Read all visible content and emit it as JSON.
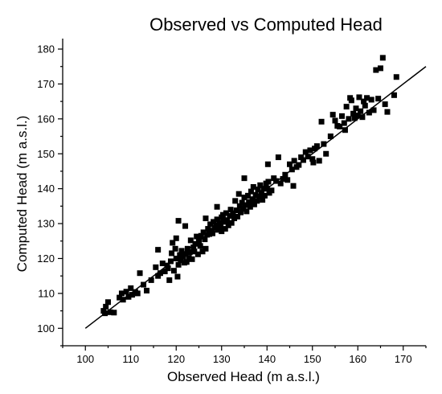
{
  "chart_data": {
    "type": "scatter",
    "title": "Observed vs Computed Head",
    "xlabel": "Observed Head (m a.s.l.)",
    "ylabel": "Computed Head (m a.s.l.)",
    "xlim": [
      95,
      175
    ],
    "ylim": [
      95,
      183
    ],
    "xticks": [
      100,
      110,
      120,
      130,
      140,
      150,
      160,
      170
    ],
    "yticks": [
      100,
      110,
      120,
      130,
      140,
      150,
      160,
      170,
      180
    ],
    "grid": false,
    "marker": "square",
    "marker_color": "#000000",
    "fit_line": {
      "x": [
        100,
        175
      ],
      "y": [
        100,
        175
      ],
      "color": "#000000"
    },
    "points": [
      [
        104.0,
        105.0
      ],
      [
        104.3,
        104.3
      ],
      [
        104.5,
        106.2
      ],
      [
        105.0,
        107.5
      ],
      [
        105.5,
        104.6
      ],
      [
        106.3,
        104.5
      ],
      [
        108.0,
        110.0
      ],
      [
        108.3,
        108.2
      ],
      [
        109.0,
        110.5
      ],
      [
        109.5,
        109.0
      ],
      [
        110.0,
        111.5
      ],
      [
        110.3,
        109.6
      ],
      [
        111.0,
        110.4
      ],
      [
        111.5,
        110.0
      ],
      [
        112.0,
        115.8
      ],
      [
        113.5,
        110.8
      ],
      [
        114.5,
        113.8
      ],
      [
        115.5,
        117.5
      ],
      [
        116.0,
        115.0
      ],
      [
        116.5,
        115.8
      ],
      [
        117.0,
        118.6
      ],
      [
        117.5,
        116.3
      ],
      [
        118.0,
        118.0
      ],
      [
        118.2,
        117.2
      ],
      [
        118.5,
        113.8
      ],
      [
        118.8,
        119.2
      ],
      [
        119.0,
        121.5
      ],
      [
        119.2,
        124.5
      ],
      [
        119.5,
        116.5
      ],
      [
        119.8,
        122.8
      ],
      [
        120.0,
        120.0
      ],
      [
        120.0,
        125.8
      ],
      [
        120.3,
        114.8
      ],
      [
        120.5,
        118.2
      ],
      [
        120.8,
        121.0
      ],
      [
        121.0,
        119.5
      ],
      [
        121.2,
        122.2
      ],
      [
        121.5,
        120.5
      ],
      [
        121.8,
        118.8
      ],
      [
        122.0,
        121.3
      ],
      [
        122.0,
        129.3
      ],
      [
        122.3,
        119.0
      ],
      [
        122.5,
        122.8
      ],
      [
        122.8,
        120.2
      ],
      [
        123.0,
        121.8
      ],
      [
        123.2,
        125.2
      ],
      [
        123.5,
        119.8
      ],
      [
        123.8,
        123.2
      ],
      [
        124.0,
        122.0
      ],
      [
        124.2,
        124.2
      ],
      [
        124.5,
        126.3
      ],
      [
        124.8,
        121.2
      ],
      [
        125.0,
        125.0
      ],
      [
        125.3,
        123.6
      ],
      [
        125.5,
        126.5
      ],
      [
        125.8,
        122.0
      ],
      [
        126.0,
        127.5
      ],
      [
        126.3,
        125.5
      ],
      [
        126.5,
        122.8
      ],
      [
        126.8,
        126.8
      ],
      [
        127.0,
        128.5
      ],
      [
        127.3,
        127.0
      ],
      [
        127.5,
        129.8
      ],
      [
        127.8,
        128.0
      ],
      [
        128.0,
        127.2
      ],
      [
        128.2,
        130.5
      ],
      [
        128.5,
        128.8
      ],
      [
        128.8,
        129.5
      ],
      [
        129.0,
        131.2
      ],
      [
        129.2,
        128.2
      ],
      [
        129.5,
        130.2
      ],
      [
        129.8,
        129.0
      ],
      [
        130.0,
        127.8
      ],
      [
        130.0,
        131.8
      ],
      [
        130.3,
        132.5
      ],
      [
        130.5,
        130.5
      ],
      [
        130.8,
        128.5
      ],
      [
        131.0,
        133.0
      ],
      [
        131.2,
        131.0
      ],
      [
        131.5,
        129.5
      ],
      [
        131.8,
        132.2
      ],
      [
        132.0,
        134.0
      ],
      [
        132.2,
        130.2
      ],
      [
        132.5,
        133.0
      ],
      [
        132.8,
        131.5
      ],
      [
        133.0,
        136.5
      ],
      [
        133.3,
        133.8
      ],
      [
        133.5,
        132.0
      ],
      [
        133.8,
        138.5
      ],
      [
        134.0,
        135.0
      ],
      [
        134.2,
        133.2
      ],
      [
        134.5,
        136.0
      ],
      [
        134.8,
        134.2
      ],
      [
        135.0,
        137.5
      ],
      [
        135.2,
        135.3
      ],
      [
        135.5,
        133.5
      ],
      [
        135.8,
        138.0
      ],
      [
        136.0,
        136.2
      ],
      [
        136.3,
        134.8
      ],
      [
        136.5,
        139.2
      ],
      [
        136.8,
        137.0
      ],
      [
        137.0,
        140.5
      ],
      [
        137.2,
        135.5
      ],
      [
        137.5,
        138.2
      ],
      [
        137.8,
        136.5
      ],
      [
        138.0,
        139.8
      ],
      [
        138.3,
        137.8
      ],
      [
        138.5,
        141.0
      ],
      [
        138.8,
        138.8
      ],
      [
        139.0,
        136.8
      ],
      [
        139.3,
        140.0
      ],
      [
        139.5,
        138.0
      ],
      [
        139.8,
        141.5
      ],
      [
        140.0,
        140.0
      ],
      [
        140.3,
        142.0
      ],
      [
        140.5,
        138.8
      ],
      [
        141.0,
        139.5
      ],
      [
        141.5,
        143.0
      ],
      [
        142.0,
        142.2
      ],
      [
        142.5,
        149.0
      ],
      [
        143.0,
        141.5
      ],
      [
        143.5,
        142.8
      ],
      [
        144.0,
        144.0
      ],
      [
        144.5,
        142.5
      ],
      [
        145.0,
        147.0
      ],
      [
        145.5,
        145.5
      ],
      [
        146.0,
        148.0
      ],
      [
        146.5,
        146.2
      ],
      [
        147.0,
        146.8
      ],
      [
        147.5,
        149.0
      ],
      [
        148.0,
        148.2
      ],
      [
        148.5,
        150.5
      ],
      [
        149.0,
        149.2
      ],
      [
        149.5,
        151.0
      ],
      [
        150.0,
        148.5
      ],
      [
        150.5,
        151.5
      ],
      [
        151.0,
        152.2
      ],
      [
        151.5,
        148.0
      ],
      [
        152.0,
        159.2
      ],
      [
        152.5,
        152.8
      ],
      [
        153.0,
        150.0
      ],
      [
        154.0,
        155.0
      ],
      [
        154.5,
        161.2
      ],
      [
        155.0,
        159.5
      ],
      [
        155.5,
        158.0
      ],
      [
        156.0,
        157.8
      ],
      [
        156.5,
        160.8
      ],
      [
        157.0,
        158.8
      ],
      [
        157.5,
        163.5
      ],
      [
        158.0,
        160.0
      ],
      [
        158.3,
        166.0
      ],
      [
        158.6,
        165.3
      ],
      [
        159.0,
        161.5
      ],
      [
        159.3,
        160.2
      ],
      [
        159.6,
        163.0
      ],
      [
        160.0,
        161.0
      ],
      [
        160.3,
        166.2
      ],
      [
        160.6,
        162.2
      ],
      [
        161.0,
        160.5
      ],
      [
        161.3,
        165.0
      ],
      [
        161.6,
        163.8
      ],
      [
        162.0,
        166.0
      ],
      [
        162.5,
        161.8
      ],
      [
        163.0,
        165.5
      ],
      [
        163.5,
        162.5
      ],
      [
        164.0,
        174.0
      ],
      [
        164.5,
        165.8
      ],
      [
        165.0,
        174.5
      ],
      [
        165.5,
        177.5
      ],
      [
        166.0,
        164.2
      ],
      [
        166.5,
        162.0
      ],
      [
        168.0,
        166.8
      ],
      [
        168.5,
        172.0
      ],
      [
        120.5,
        130.8
      ],
      [
        135.0,
        143.0
      ],
      [
        140.2,
        147.0
      ],
      [
        126.5,
        131.5
      ],
      [
        116.0,
        122.5
      ],
      [
        145.8,
        140.8
      ],
      [
        150.2,
        147.5
      ],
      [
        157.2,
        156.8
      ],
      [
        112.8,
        112.5
      ],
      [
        107.5,
        108.8
      ],
      [
        129.0,
        134.8
      ]
    ]
  }
}
